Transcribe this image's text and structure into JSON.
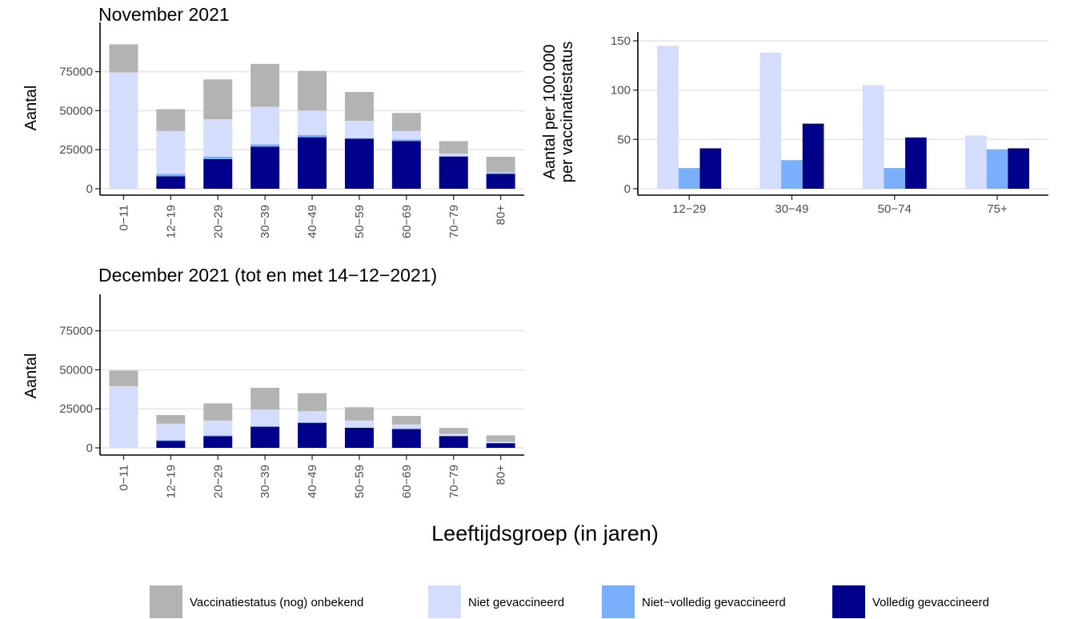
{
  "colors": {
    "unknown": "#b3b3b3",
    "not_vaccinated": "#d4defc",
    "partially_vaccinated": "#7aaffc",
    "fully_vaccinated": "#00008b"
  },
  "legend": {
    "items": [
      {
        "label": "Vaccinatiestatus (nog) onbekend",
        "color_key": "unknown"
      },
      {
        "label": "Niet gevaccineerd",
        "color_key": "not_vaccinated"
      },
      {
        "label": "Niet−volledig gevaccineerd",
        "color_key": "partially_vaccinated"
      },
      {
        "label": "Volledig gevaccineerd",
        "color_key": "fully_vaccinated"
      }
    ]
  },
  "shared_xlabel": "Leeftijdsgroep (in jaren)",
  "chart_data": [
    {
      "id": "november",
      "type": "bar",
      "stacked": true,
      "title": "November 2021",
      "ylabel": "Aantal",
      "xlabel": "",
      "ylim": [
        0,
        95000
      ],
      "yticks": [
        0,
        25000,
        50000,
        75000
      ],
      "ytick_labels": [
        "0",
        "25000",
        "50000",
        "75000"
      ],
      "categories": [
        "0−11",
        "12−19",
        "20−29",
        "30−39",
        "40−49",
        "50−59",
        "60−69",
        "70−79",
        "80+"
      ],
      "series": [
        {
          "name": "Volledig gevaccineerd",
          "color_key": "fully_vaccinated",
          "values": [
            0,
            8000,
            19000,
            27000,
            33000,
            32000,
            30500,
            20500,
            9500
          ]
        },
        {
          "name": "Niet−volledig gevaccineerd",
          "color_key": "partially_vaccinated",
          "values": [
            0,
            1500,
            1500,
            1500,
            1500,
            500,
            1000,
            500,
            500
          ]
        },
        {
          "name": "Niet gevaccineerd",
          "color_key": "not_vaccinated",
          "values": [
            74500,
            27500,
            24000,
            24000,
            15500,
            11000,
            5500,
            1500,
            500
          ]
        },
        {
          "name": "Vaccinatiestatus (nog) onbekend",
          "color_key": "unknown",
          "values": [
            18000,
            14000,
            25500,
            27500,
            25500,
            18500,
            11500,
            8000,
            10000
          ]
        }
      ],
      "grid": true
    },
    {
      "id": "december",
      "type": "bar",
      "stacked": true,
      "title": "December 2021 (tot en met 14−12−2021)",
      "ylabel": "Aantal",
      "xlabel": "",
      "ylim": [
        0,
        95000
      ],
      "yticks": [
        0,
        25000,
        50000,
        75000
      ],
      "ytick_labels": [
        "0",
        "25000",
        "50000",
        "75000"
      ],
      "categories": [
        "0−11",
        "12−19",
        "20−29",
        "30−39",
        "40−49",
        "50−59",
        "60−69",
        "70−79",
        "80+"
      ],
      "series": [
        {
          "name": "Volledig gevaccineerd",
          "color_key": "fully_vaccinated",
          "values": [
            0,
            4500,
            7500,
            13500,
            16000,
            12800,
            12000,
            7500,
            3000
          ]
        },
        {
          "name": "Niet−volledig gevaccineerd",
          "color_key": "partially_vaccinated",
          "values": [
            0,
            500,
            500,
            500,
            500,
            200,
            500,
            200,
            200
          ]
        },
        {
          "name": "Niet gevaccineerd",
          "color_key": "not_vaccinated",
          "values": [
            39500,
            10500,
            9500,
            10500,
            7000,
            4500,
            2500,
            1300,
            800
          ]
        },
        {
          "name": "Vaccinatiestatus (nog) onbekend",
          "color_key": "unknown",
          "values": [
            10000,
            5500,
            11000,
            14000,
            11500,
            8500,
            5500,
            3800,
            4000
          ]
        }
      ],
      "grid": true
    },
    {
      "id": "rate",
      "type": "bar",
      "stacked": false,
      "title": "",
      "ylabel_lines": [
        "Aantal per 100.000",
        "per vaccinatiestatus"
      ],
      "xlabel": "",
      "ylim": [
        0,
        155
      ],
      "yticks": [
        0,
        50,
        100,
        150
      ],
      "ytick_labels": [
        "0",
        "50",
        "100",
        "150"
      ],
      "categories": [
        "12−29",
        "30−49",
        "50−74",
        "75+"
      ],
      "series": [
        {
          "name": "Niet gevaccineerd",
          "color_key": "not_vaccinated",
          "values": [
            145,
            138,
            105,
            54
          ]
        },
        {
          "name": "Niet−volledig gevaccineerd",
          "color_key": "partially_vaccinated",
          "values": [
            21,
            29,
            21,
            40
          ]
        },
        {
          "name": "Volledig gevaccineerd",
          "color_key": "fully_vaccinated",
          "values": [
            41,
            66,
            52,
            41
          ]
        }
      ],
      "grid": true
    }
  ]
}
